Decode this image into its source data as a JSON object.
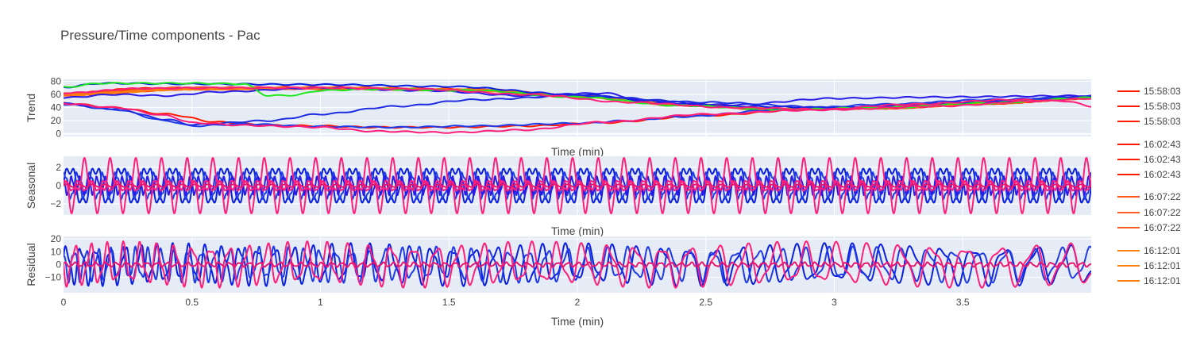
{
  "figure": {
    "title": "Pressure/Time components - Pac",
    "background": "#ffffff",
    "plot_background": "#e5ecf6",
    "grid_color": "#ffffff"
  },
  "chart_data": [
    {
      "type": "line",
      "title": "Pressure/Time components - Pac",
      "xlabel": "Time (min)",
      "ylabel": "Trend",
      "xlim": [
        0,
        4
      ],
      "ylim": [
        -4,
        83
      ],
      "yticks": [
        0,
        20,
        40,
        60,
        80
      ],
      "x_tick_labels": false,
      "grid": true,
      "series": [
        {
          "name": "15:58:03",
          "color": "#ff1a00",
          "x": [
            0,
            0.3,
            0.5,
            0.8,
            1.2,
            1.6,
            2.0,
            2.4,
            2.8,
            3.2,
            3.6,
            4.0
          ],
          "values": [
            60,
            68,
            70,
            70,
            69,
            67,
            58,
            45,
            38,
            40,
            47,
            55
          ]
        },
        {
          "name": "15:58:03",
          "color": "#ff1a00",
          "x": [
            0,
            0.3,
            0.5,
            0.8,
            1.2,
            1.6,
            2.0,
            2.4,
            2.8,
            3.2,
            3.6,
            4.0
          ],
          "values": [
            61,
            69,
            70,
            69,
            68,
            66,
            57,
            44,
            37,
            39,
            46,
            54
          ]
        },
        {
          "name": "15:58:03",
          "color": "#ff1a00",
          "x": [
            0,
            0.2,
            0.4,
            0.6,
            0.8,
            1.0,
            1.2,
            1.5,
            1.8,
            2.1,
            2.5,
            2.9,
            3.3,
            3.7,
            4.0
          ],
          "values": [
            47,
            40,
            30,
            18,
            13,
            12,
            10,
            10,
            12,
            17,
            28,
            37,
            44,
            50,
            54
          ]
        },
        {
          "name": "16:02:43",
          "color": "#ff1a00",
          "x": [
            0,
            0.5,
            1.0,
            1.6,
            2.0,
            2.4,
            2.8,
            3.2,
            3.6,
            4.0
          ],
          "values": [
            59,
            68,
            70,
            67,
            58,
            45,
            38,
            40,
            47,
            55
          ]
        },
        {
          "name": "16:02:43",
          "color": "#ff1a00",
          "x": [
            0,
            0.5,
            1.0,
            1.6,
            2.0,
            2.4,
            2.8,
            3.2,
            3.6,
            4.0
          ],
          "values": [
            60,
            69,
            70,
            67,
            57,
            44,
            37,
            39,
            46,
            54
          ]
        },
        {
          "name": "16:02:43",
          "color": "#ff1a00",
          "x": [
            0,
            0.5,
            1.0,
            1.6,
            2.0,
            2.4,
            2.8,
            3.2,
            3.6,
            4.0
          ],
          "values": [
            61,
            70,
            71,
            68,
            58,
            45,
            38,
            41,
            48,
            56
          ]
        },
        {
          "name": "16:07:22",
          "color": "#ff5a1f",
          "x": [
            0,
            0.5,
            1.0,
            1.6,
            2.0,
            2.4,
            2.8,
            3.2,
            3.6,
            4.0
          ],
          "values": [
            60,
            69,
            70,
            67,
            57,
            44,
            37,
            40,
            47,
            55
          ]
        },
        {
          "name": "16:07:22",
          "color": "#ff5a1f",
          "x": [
            0,
            0.5,
            1.0,
            1.6,
            2.0,
            2.4,
            2.8,
            3.2,
            3.6,
            4.0
          ],
          "values": [
            59,
            68,
            69,
            66,
            56,
            43,
            36,
            39,
            46,
            54
          ]
        },
        {
          "name": "16:07:22",
          "color": "#ff5a1f",
          "x": [
            0,
            0.5,
            1.0,
            1.6,
            2.0,
            2.4,
            2.8,
            3.2,
            3.6,
            4.0
          ],
          "values": [
            61,
            70,
            70,
            67,
            57,
            44,
            37,
            40,
            47,
            55
          ]
        },
        {
          "name": "16:12:01",
          "color": "#ff7f0e",
          "x": [
            0,
            0.5,
            1.0,
            1.6,
            2.0,
            2.4,
            2.8,
            3.2,
            3.6,
            4.0
          ],
          "values": [
            60,
            68,
            69,
            66,
            57,
            44,
            37,
            40,
            47,
            55
          ]
        },
        {
          "name": "16:12:01",
          "color": "#ff7f0e",
          "x": [
            0,
            0.5,
            1.0,
            1.6,
            2.0,
            2.4,
            2.8,
            3.2,
            3.6,
            4.0
          ],
          "values": [
            59,
            68,
            70,
            67,
            57,
            44,
            37,
            40,
            47,
            55
          ]
        },
        {
          "name": "16:12:01",
          "color": "#ff7f0e",
          "x": [
            0,
            0.5,
            1.0,
            1.6,
            2.0,
            2.4,
            2.8,
            3.2,
            3.6,
            4.0
          ],
          "values": [
            60,
            69,
            70,
            67,
            58,
            45,
            38,
            40,
            47,
            55
          ]
        },
        {
          "color": "#0b1fe0",
          "x": [
            0,
            0.15,
            0.5,
            1.0,
            1.5,
            2.0,
            2.3,
            2.6,
            3.0,
            3.4,
            3.8,
            4.0
          ],
          "values": [
            71,
            77,
            76,
            75,
            72,
            60,
            50,
            42,
            40,
            46,
            52,
            57
          ]
        },
        {
          "color": "#1f3be8",
          "x": [
            0,
            0.2,
            0.4,
            0.5,
            0.7,
            1.0,
            1.3,
            1.6,
            2.0,
            2.2,
            2.4,
            2.8,
            3.2,
            3.6,
            4.0
          ],
          "values": [
            45,
            37,
            20,
            12,
            15,
            11,
            10,
            12,
            16,
            20,
            26,
            37,
            45,
            52,
            56
          ]
        },
        {
          "color": "#2a1be6",
          "x": [
            0,
            0.2,
            0.4,
            0.6,
            1.0,
            1.4,
            1.8,
            2.1,
            2.3,
            2.6,
            3.0,
            3.4,
            4.0
          ],
          "values": [
            55,
            60,
            58,
            64,
            70,
            66,
            58,
            62,
            47,
            44,
            54,
            56,
            58
          ]
        },
        {
          "color": "#1e2be0",
          "x": [
            0,
            0.2,
            0.4,
            0.5,
            0.8,
            1.0,
            1.3,
            1.6,
            2.0,
            2.5,
            3.0,
            3.5,
            4.0
          ],
          "values": [
            46,
            38,
            22,
            14,
            20,
            30,
            42,
            52,
            58,
            48,
            40,
            48,
            56
          ]
        },
        {
          "color": "#1fe61f",
          "x": [
            0,
            0.15,
            0.5,
            0.7,
            0.8,
            0.9,
            1.0,
            1.2,
            1.6,
            2.0,
            2.4,
            2.8,
            3.2,
            3.6,
            4.0
          ],
          "values": [
            71,
            77,
            77,
            76,
            58,
            59,
            66,
            68,
            66,
            56,
            43,
            37,
            40,
            47,
            55
          ]
        },
        {
          "color": "#ff1f7a",
          "x": [
            0,
            0.2,
            0.4,
            0.5,
            0.7,
            0.9,
            1.0,
            1.2,
            1.5,
            1.8,
            2.1,
            2.5,
            2.9,
            3.3,
            3.7,
            3.9,
            4.0
          ],
          "values": [
            46,
            40,
            28,
            17,
            13,
            11,
            10,
            4,
            2,
            6,
            18,
            30,
            36,
            45,
            52,
            50,
            42
          ]
        },
        {
          "color": "#ff1f7a",
          "x": [
            0,
            0.3,
            0.6,
            1.0,
            1.4,
            1.8,
            2.2,
            2.6,
            3.0,
            3.4,
            3.8,
            4.0
          ],
          "values": [
            62,
            69,
            70,
            70,
            68,
            60,
            48,
            40,
            37,
            42,
            50,
            54
          ]
        }
      ]
    },
    {
      "type": "line",
      "xlabel": "Time (min)",
      "ylabel": "Seasonal",
      "xlim": [
        0,
        4
      ],
      "ylim": [
        -3.2,
        3.2
      ],
      "yticks": [
        -2,
        0,
        2
      ],
      "x_tick_labels": false,
      "grid": true,
      "series": [
        {
          "color": "#0b1fe0",
          "amplitude": 2.3,
          "period_min": 0.1,
          "phase": 0.0,
          "harmonic": 0.35
        },
        {
          "color": "#1f3be8",
          "amplitude": 1.5,
          "period_min": 0.05,
          "phase": 1.1,
          "harmonic": 0.25
        },
        {
          "color": "#2a1be6",
          "amplitude": 1.0,
          "period_min": 0.033,
          "phase": 2.0,
          "harmonic": 0.2
        },
        {
          "color": "#ff1f7a",
          "amplitude": 2.6,
          "period_min": 0.1,
          "phase": 2.6,
          "harmonic": 0.45
        },
        {
          "color": "#ff1f7a",
          "amplitude": 0.6,
          "period_min": 0.05,
          "phase": 0.6,
          "harmonic": 0.2
        },
        {
          "color": "#e8166f",
          "amplitude": 0.15,
          "period_min": 0.05,
          "phase": 0.0,
          "harmonic": 0.0
        }
      ]
    },
    {
      "type": "line",
      "xlabel": "Time (min)",
      "ylabel": "Residual",
      "xlim": [
        0,
        4
      ],
      "ylim": [
        -22,
        22
      ],
      "yticks": [
        -10,
        0,
        10,
        20
      ],
      "xticks": [
        0,
        0.5,
        1,
        1.5,
        2,
        2.5,
        3,
        3.5
      ],
      "x_tick_labels_text": [
        "0",
        "0.5",
        "1",
        "1.5",
        "2",
        "2.5",
        "3",
        "3.5"
      ],
      "grid": true,
      "series": [
        {
          "color": "#0b1fe0",
          "amplitude": 13,
          "period_start_min": 0.055,
          "period_end_min": 0.13,
          "phase": 0.0
        },
        {
          "color": "#1f3be8",
          "amplitude": 11,
          "period_start_min": 0.045,
          "period_end_min": 0.11,
          "phase": 1.7
        },
        {
          "color": "#ff1f7a",
          "amplitude": 14,
          "period_start_min": 0.06,
          "period_end_min": 0.14,
          "phase": 3.0
        },
        {
          "color": "#e8166f",
          "amplitude": 1.5,
          "period_start_min": 0.04,
          "period_end_min": 0.04,
          "phase": 0.5
        }
      ]
    }
  ],
  "legend": {
    "placement": "right",
    "entries": [
      {
        "label": "15:58:03",
        "color": "#ff1a00"
      },
      {
        "label": "15:58:03",
        "color": "#ff1a00"
      },
      {
        "label": "15:58:03",
        "color": "#ff1a00"
      },
      {
        "label": "16:02:43",
        "color": "#ff1a00"
      },
      {
        "label": "16:02:43",
        "color": "#ff1a00"
      },
      {
        "label": "16:02:43",
        "color": "#ff1a00"
      },
      {
        "label": "16:07:22",
        "color": "#ff5a1f"
      },
      {
        "label": "16:07:22",
        "color": "#ff5a1f"
      },
      {
        "label": "16:07:22",
        "color": "#ff5a1f"
      },
      {
        "label": "16:12:01",
        "color": "#ff7f0e"
      },
      {
        "label": "16:12:01",
        "color": "#ff7f0e"
      },
      {
        "label": "16:12:01",
        "color": "#ff7f0e"
      }
    ]
  }
}
